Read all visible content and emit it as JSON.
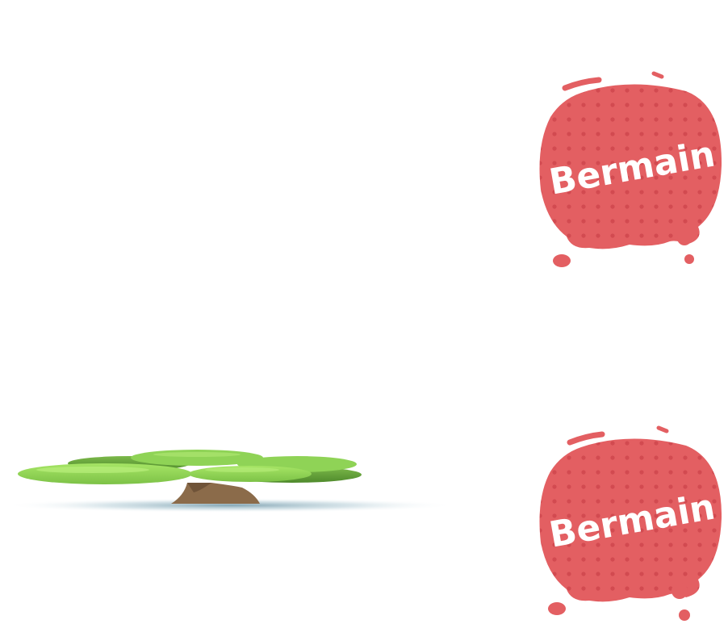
{
  "buttons": [
    {
      "label": "Bermain"
    },
    {
      "label": "Bermain"
    }
  ],
  "icons": {
    "tree": "tree-icon",
    "button_blob": "paint-blob-icon"
  },
  "colors": {
    "button_red": "#e35f62",
    "button_dot": "#d24a50",
    "leaf_light": "#9ee05d",
    "leaf_mid": "#84c84a",
    "leaf_dark": "#5c9a32",
    "trunk": "#8b6b4a",
    "shadow": "#7fa4b3",
    "background": "#ffffff"
  }
}
